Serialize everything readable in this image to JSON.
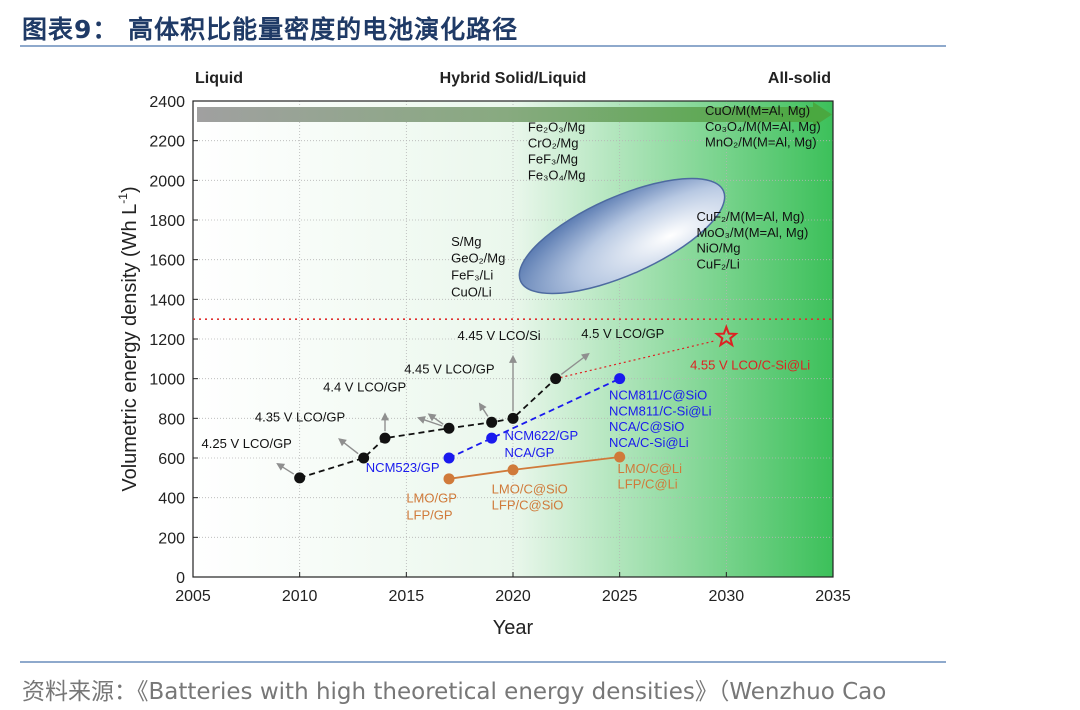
{
  "figure": {
    "title": "图表9： 高体积比能量密度的电池演化路径",
    "source": "资料来源：《Batteries with high theoretical energy densities》（Wenzhuo Cao"
  },
  "colors": {
    "black_series": "#111111",
    "blue_series": "#1a1aee",
    "orange_series": "#d07a3a",
    "star": "#dd2222",
    "reference_line": "#e03030",
    "arrow_start": "#9a9a9a",
    "arrow_end": "#4aa840",
    "ellipse": "#5f7fb4",
    "background_green": "#2fbf4f"
  },
  "chart_data": {
    "type": "scatter",
    "xlabel": "Year",
    "ylabel": "Volumetric energy density (Wh L",
    "ylabel_sup": "-1",
    "ylabel_close": ")",
    "xlim": [
      2005,
      2035
    ],
    "ylim": [
      0,
      2400
    ],
    "xticks": [
      2005,
      2010,
      2015,
      2020,
      2025,
      2030,
      2035
    ],
    "yticks": [
      0,
      200,
      400,
      600,
      800,
      1000,
      1200,
      1400,
      1600,
      1800,
      2000,
      2200,
      2400
    ],
    "reference_line_y": 1300,
    "eras": [
      "Liquid",
      "Hybrid Solid/Liquid",
      "All-solid"
    ],
    "series": [
      {
        "key": "black",
        "style": "dashed",
        "points": [
          {
            "x": 2010,
            "y": 500
          },
          {
            "x": 2013,
            "y": 600
          },
          {
            "x": 2014,
            "y": 700
          },
          {
            "x": 2017,
            "y": 750
          },
          {
            "x": 2019,
            "y": 780
          },
          {
            "x": 2020,
            "y": 800
          },
          {
            "x": 2022,
            "y": 1000
          }
        ]
      },
      {
        "key": "blue",
        "style": "dashed",
        "points": [
          {
            "x": 2017,
            "y": 600
          },
          {
            "x": 2019,
            "y": 700
          },
          {
            "x": 2025,
            "y": 1000
          }
        ]
      },
      {
        "key": "orange",
        "style": "solid",
        "points": [
          {
            "x": 2017,
            "y": 495
          },
          {
            "x": 2020,
            "y": 540
          },
          {
            "x": 2025,
            "y": 605
          }
        ]
      },
      {
        "key": "star",
        "style": "dotted",
        "points": [
          {
            "x": 2030,
            "y": 1210
          }
        ]
      }
    ],
    "annotations": [
      {
        "key": "a1",
        "text": "4.25 V LCO/GP",
        "color": "#111111",
        "x": 2005.4,
        "y": 650
      },
      {
        "key": "a2",
        "text": "4.35 V LCO/GP",
        "color": "#111111",
        "x": 2007.9,
        "y": 785
      },
      {
        "key": "a3",
        "text": "4.4 V LCO/GP",
        "color": "#111111",
        "x": 2011.1,
        "y": 935
      },
      {
        "key": "a4",
        "text": "4.45 V LCO/GP",
        "color": "#111111",
        "x": 2014.9,
        "y": 1025
      },
      {
        "key": "a5",
        "text": "4.45 V LCO/Si",
        "color": "#111111",
        "x": 2017.4,
        "y": 1195
      },
      {
        "key": "a6",
        "text": "4.5 V LCO/GP",
        "color": "#111111",
        "x": 2023.2,
        "y": 1205
      },
      {
        "key": "a7",
        "text": "NCM523/GP",
        "color": "#1a1aee",
        "x": 2013.1,
        "y": 530
      },
      {
        "key": "a8",
        "text": "NCM622/GP",
        "color": "#1a1aee",
        "x": 2019.6,
        "y": 690
      },
      {
        "key": "a9",
        "text": "NCA/GP",
        "color": "#1a1aee",
        "x": 2019.6,
        "y": 605
      },
      {
        "key": "a10",
        "text": "NCM811/C@SiO",
        "color": "#1a1aee",
        "x": 2024.5,
        "y": 895
      },
      {
        "key": "a11",
        "text": "NCM811/C-Si@Li",
        "color": "#1a1aee",
        "x": 2024.5,
        "y": 815
      },
      {
        "key": "a12",
        "text": "NCA/C@SiO",
        "color": "#1a1aee",
        "x": 2024.5,
        "y": 735
      },
      {
        "key": "a13",
        "text": "NCA/C-Si@Li",
        "color": "#1a1aee",
        "x": 2024.5,
        "y": 655
      },
      {
        "key": "a14",
        "text": "LMO/GP",
        "color": "#d07a3a",
        "x": 2015.0,
        "y": 375
      },
      {
        "key": "a15",
        "text": "LFP/GP",
        "color": "#d07a3a",
        "x": 2015.0,
        "y": 290
      },
      {
        "key": "a16",
        "text": "LMO/C@SiO",
        "color": "#d07a3a",
        "x": 2019.0,
        "y": 420
      },
      {
        "key": "a17",
        "text": "LFP/C@SiO",
        "color": "#d07a3a",
        "x": 2019.0,
        "y": 340
      },
      {
        "key": "a18",
        "text": "LMO/C@Li",
        "color": "#d07a3a",
        "x": 2024.9,
        "y": 525
      },
      {
        "key": "a19",
        "text": "LFP/C@Li",
        "color": "#d07a3a",
        "x": 2024.9,
        "y": 445
      },
      {
        "key": "a20",
        "text": "4.55 V LCO/C-Si@Li",
        "color": "#dd2222",
        "x": 2028.3,
        "y": 1045
      },
      {
        "key": "a21",
        "text": "S/Mg",
        "color": "#111111",
        "x": 2017.1,
        "y": 1670
      },
      {
        "key": "a22",
        "text": "GeO₂/Mg",
        "color": "#111111",
        "x": 2017.1,
        "y": 1585
      },
      {
        "key": "a23",
        "text": "FeF₃/Li",
        "color": "#111111",
        "x": 2017.1,
        "y": 1500
      },
      {
        "key": "a24",
        "text": "CuO/Li",
        "color": "#111111",
        "x": 2017.1,
        "y": 1415
      },
      {
        "key": "a25",
        "text": "Fe₂O₃/Mg",
        "color": "#111111",
        "x": 2020.7,
        "y": 2245
      },
      {
        "key": "a26",
        "text": "CrO₂/Mg",
        "color": "#111111",
        "x": 2020.7,
        "y": 2165
      },
      {
        "key": "a27",
        "text": "FeF₃/Mg",
        "color": "#111111",
        "x": 2020.7,
        "y": 2085
      },
      {
        "key": "a28",
        "text": "Fe₃O₄/Mg",
        "color": "#111111",
        "x": 2020.7,
        "y": 2005
      },
      {
        "key": "a29",
        "text": "CuO/M(M=Al, Mg)",
        "color": "#111111",
        "x": 2029.0,
        "y": 2330
      },
      {
        "key": "a30",
        "text": "Co₃O₄/M(M=Al, Mg)",
        "color": "#111111",
        "x": 2029.0,
        "y": 2250
      },
      {
        "key": "a31",
        "text": "MnO₂/M(M=Al, Mg)",
        "color": "#111111",
        "x": 2029.0,
        "y": 2170
      },
      {
        "key": "a32",
        "text": "CuF₂/M(M=Al, Mg)",
        "color": "#111111",
        "x": 2028.6,
        "y": 1795
      },
      {
        "key": "a33",
        "text": "MoO₃/M(M=Al, Mg)",
        "color": "#111111",
        "x": 2028.6,
        "y": 1715
      },
      {
        "key": "a34",
        "text": "NiO/Mg",
        "color": "#111111",
        "x": 2028.6,
        "y": 1635
      },
      {
        "key": "a35",
        "text": "CuF₂/Li",
        "color": "#111111",
        "x": 2028.6,
        "y": 1555
      }
    ]
  }
}
